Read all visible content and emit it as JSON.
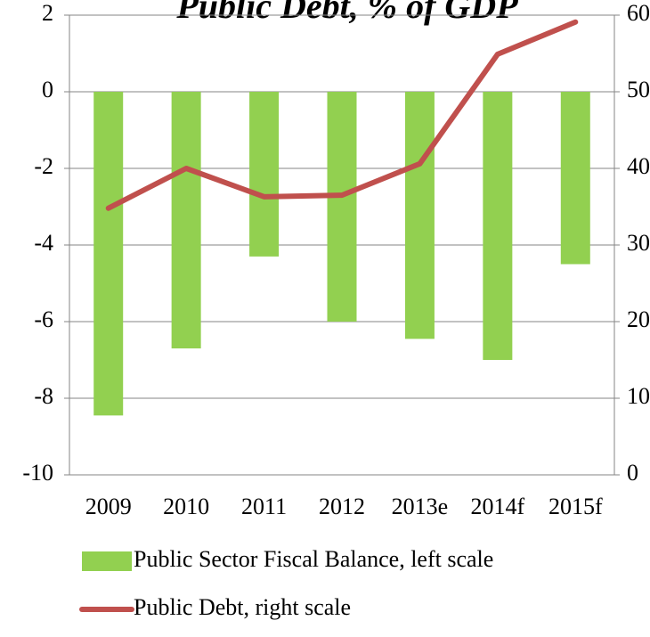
{
  "chart_data": {
    "type": "bar",
    "title": "Public Debt, % of GDP",
    "categories": [
      "2009",
      "2010",
      "2011",
      "2012",
      "2013e",
      "2014f",
      "2015f"
    ],
    "series": [
      {
        "name": "Public Sector Fiscal Balance, left scale",
        "color": "#92d050",
        "type": "bar",
        "axis": "y",
        "values": [
          -8.45,
          -6.7,
          -4.3,
          -6.0,
          -6.45,
          -7.0,
          -4.5
        ]
      },
      {
        "name": "Public Debt, right scale",
        "color": "#c0504d",
        "type": "line",
        "axis": "y2",
        "values": [
          34.8,
          40.0,
          36.3,
          36.5,
          40.6,
          54.9,
          59.1
        ]
      }
    ],
    "ylim": [
      -10,
      2
    ],
    "yticks": [
      -10,
      -8,
      -6,
      -4,
      -2,
      0,
      2
    ],
    "y2lim": [
      0,
      60
    ],
    "y2ticks": [
      0,
      10,
      20,
      30,
      40,
      50,
      60
    ],
    "grid": true,
    "legend": "bottom"
  }
}
